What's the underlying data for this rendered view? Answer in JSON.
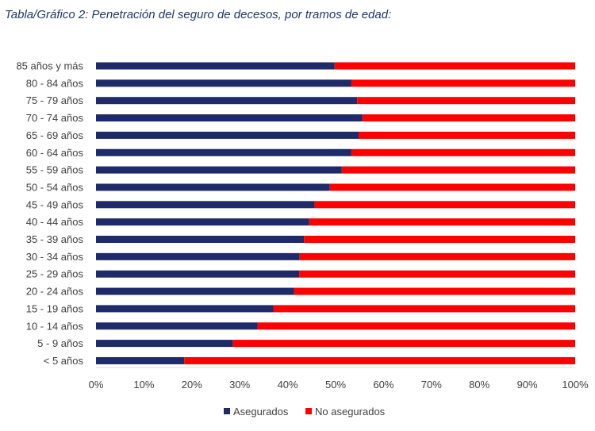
{
  "title": "Tabla/Gráfico 2: Penetración del seguro de decesos, por tramos de edad:",
  "chart_data": {
    "type": "bar",
    "orientation": "horizontal",
    "stacked": true,
    "percent_stacked": true,
    "categories": [
      "85 años y más",
      "80 - 84 años",
      "75 - 79 años",
      "70 - 74 años",
      "65 - 69 años",
      "60 - 64 años",
      "55 - 59 años",
      "50 - 54 años",
      "45 - 49 años",
      "40 - 44 años",
      "35 - 39 años",
      "30 - 34 años",
      "25 - 29 años",
      "20 - 24 años",
      "15 - 19 años",
      "10 - 14 años",
      "5 - 9 años",
      "< 5 años"
    ],
    "series": [
      {
        "name": "Asegurados",
        "color": "#1f2a6b",
        "values": [
          49.8,
          53.3,
          54.5,
          55.6,
          54.8,
          53.3,
          51.3,
          48.8,
          45.6,
          44.5,
          43.4,
          42.5,
          42.4,
          41.3,
          37.0,
          33.7,
          28.6,
          18.4
        ]
      },
      {
        "name": "No asegurados",
        "color": "#ff0000",
        "values": [
          50.2,
          46.7,
          45.5,
          44.4,
          45.2,
          46.7,
          48.7,
          51.2,
          54.4,
          55.5,
          56.6,
          57.5,
          57.6,
          58.7,
          63.0,
          66.3,
          71.4,
          81.6
        ]
      }
    ],
    "xticks": [
      "0%",
      "10%",
      "20%",
      "30%",
      "40%",
      "50%",
      "60%",
      "70%",
      "80%",
      "90%",
      "100%"
    ],
    "xlim": [
      0,
      100
    ],
    "grid": false,
    "legend_position": "bottom"
  }
}
